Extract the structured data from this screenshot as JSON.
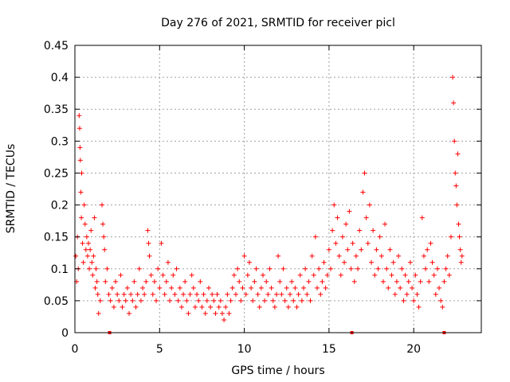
{
  "chart_data": {
    "type": "scatter",
    "title": "Day 276 of 2021, SRMTID for receiver picl",
    "xlabel": "GPS time / hours",
    "ylabel": "SRMTID / TECUs",
    "xlim": [
      0,
      23.99
    ],
    "ylim": [
      0,
      0.45
    ],
    "x_ticks": [
      0,
      5,
      10,
      15,
      20
    ],
    "x_tick_labels": [
      "0",
      "5",
      "10",
      "15",
      "20"
    ],
    "y_ticks": [
      0,
      0.05,
      0.1,
      0.15,
      0.2,
      0.25,
      0.3,
      0.35,
      0.4,
      0.45
    ],
    "y_tick_labels": [
      "0",
      "0.05",
      "0.1",
      "0.15",
      "0.2",
      "0.25",
      "0.3",
      "0.35",
      "0.4",
      "0.45"
    ],
    "grid": true,
    "marker": "plus",
    "color": "#ff0000",
    "series": [
      {
        "points": [
          [
            0.05,
            0.12
          ],
          [
            0.1,
            0.08
          ],
          [
            0.15,
            0.15
          ],
          [
            0.2,
            0.1
          ],
          [
            0.25,
            0.34
          ],
          [
            0.28,
            0.32
          ],
          [
            0.3,
            0.29
          ],
          [
            0.32,
            0.27
          ],
          [
            0.35,
            0.22
          ],
          [
            0.38,
            0.18
          ],
          [
            0.4,
            0.25
          ],
          [
            0.45,
            0.14
          ],
          [
            0.5,
            0.11
          ],
          [
            0.55,
            0.2
          ],
          [
            0.6,
            0.17
          ],
          [
            0.65,
            0.13
          ],
          [
            0.7,
            0.15
          ],
          [
            0.75,
            0.12
          ],
          [
            0.8,
            0.14
          ],
          [
            0.85,
            0.1
          ],
          [
            0.9,
            0.13
          ],
          [
            0.95,
            0.16
          ],
          [
            1.0,
            0.11
          ],
          [
            1.05,
            0.09
          ],
          [
            1.1,
            0.12
          ],
          [
            1.15,
            0.18
          ],
          [
            1.2,
            0.07
          ],
          [
            1.25,
            0.1
          ],
          [
            1.3,
            0.08
          ],
          [
            1.35,
            0.06
          ],
          [
            1.4,
            0.03
          ],
          [
            1.5,
            0.05
          ],
          [
            1.6,
            0.2
          ],
          [
            1.65,
            0.17
          ],
          [
            1.7,
            0.15
          ],
          [
            1.75,
            0.13
          ],
          [
            1.8,
            0.08
          ],
          [
            1.9,
            0.1
          ],
          [
            2.0,
            0.06
          ],
          [
            2.1,
            0.05
          ],
          [
            2.2,
            0.07
          ],
          [
            2.3,
            0.04
          ],
          [
            2.4,
            0.08
          ],
          [
            2.5,
            0.06
          ],
          [
            2.6,
            0.05
          ],
          [
            2.7,
            0.09
          ],
          [
            2.8,
            0.04
          ],
          [
            2.9,
            0.06
          ],
          [
            3.0,
            0.05
          ],
          [
            3.1,
            0.07
          ],
          [
            3.2,
            0.03
          ],
          [
            3.3,
            0.06
          ],
          [
            3.4,
            0.05
          ],
          [
            3.5,
            0.08
          ],
          [
            3.6,
            0.04
          ],
          [
            3.7,
            0.06
          ],
          [
            3.8,
            0.1
          ],
          [
            3.9,
            0.05
          ],
          [
            4.0,
            0.07
          ],
          [
            4.1,
            0.06
          ],
          [
            4.2,
            0.08
          ],
          [
            4.3,
            0.16
          ],
          [
            4.35,
            0.14
          ],
          [
            4.4,
            0.12
          ],
          [
            4.5,
            0.09
          ],
          [
            4.6,
            0.06
          ],
          [
            4.7,
            0.08
          ],
          [
            4.8,
            0.05
          ],
          [
            4.9,
            0.1
          ],
          [
            5.0,
            0.07
          ],
          [
            5.1,
            0.14
          ],
          [
            5.2,
            0.09
          ],
          [
            5.3,
            0.06
          ],
          [
            5.4,
            0.08
          ],
          [
            5.5,
            0.11
          ],
          [
            5.6,
            0.05
          ],
          [
            5.7,
            0.07
          ],
          [
            5.8,
            0.09
          ],
          [
            5.9,
            0.06
          ],
          [
            6.0,
            0.1
          ],
          [
            6.1,
            0.05
          ],
          [
            6.2,
            0.07
          ],
          [
            6.3,
            0.04
          ],
          [
            6.4,
            0.06
          ],
          [
            6.5,
            0.08
          ],
          [
            6.6,
            0.05
          ],
          [
            6.7,
            0.03
          ],
          [
            6.8,
            0.06
          ],
          [
            6.9,
            0.09
          ],
          [
            7.0,
            0.07
          ],
          [
            7.1,
            0.04
          ],
          [
            7.2,
            0.06
          ],
          [
            7.3,
            0.05
          ],
          [
            7.4,
            0.08
          ],
          [
            7.5,
            0.04
          ],
          [
            7.6,
            0.06
          ],
          [
            7.7,
            0.03
          ],
          [
            7.8,
            0.05
          ],
          [
            7.9,
            0.07
          ],
          [
            8.0,
            0.04
          ],
          [
            8.1,
            0.06
          ],
          [
            8.2,
            0.05
          ],
          [
            8.3,
            0.03
          ],
          [
            8.4,
            0.06
          ],
          [
            8.5,
            0.04
          ],
          [
            8.6,
            0.05
          ],
          [
            8.7,
            0.03
          ],
          [
            8.8,
            0.02
          ],
          [
            8.9,
            0.04
          ],
          [
            9.0,
            0.06
          ],
          [
            9.1,
            0.03
          ],
          [
            9.2,
            0.05
          ],
          [
            9.3,
            0.07
          ],
          [
            9.4,
            0.09
          ],
          [
            9.5,
            0.06
          ],
          [
            9.6,
            0.1
          ],
          [
            9.7,
            0.08
          ],
          [
            9.8,
            0.05
          ],
          [
            9.9,
            0.07
          ],
          [
            10.0,
            0.12
          ],
          [
            10.1,
            0.06
          ],
          [
            10.2,
            0.09
          ],
          [
            10.3,
            0.11
          ],
          [
            10.4,
            0.07
          ],
          [
            10.5,
            0.05
          ],
          [
            10.6,
            0.08
          ],
          [
            10.7,
            0.1
          ],
          [
            10.8,
            0.06
          ],
          [
            10.9,
            0.04
          ],
          [
            11.0,
            0.07
          ],
          [
            11.1,
            0.09
          ],
          [
            11.2,
            0.05
          ],
          [
            11.3,
            0.08
          ],
          [
            11.4,
            0.06
          ],
          [
            11.5,
            0.1
          ],
          [
            11.6,
            0.07
          ],
          [
            11.7,
            0.05
          ],
          [
            11.8,
            0.04
          ],
          [
            11.9,
            0.06
          ],
          [
            12.0,
            0.12
          ],
          [
            12.1,
            0.08
          ],
          [
            12.2,
            0.06
          ],
          [
            12.3,
            0.1
          ],
          [
            12.4,
            0.05
          ],
          [
            12.5,
            0.07
          ],
          [
            12.6,
            0.04
          ],
          [
            12.7,
            0.06
          ],
          [
            12.8,
            0.08
          ],
          [
            12.9,
            0.05
          ],
          [
            13.0,
            0.07
          ],
          [
            13.1,
            0.04
          ],
          [
            13.2,
            0.06
          ],
          [
            13.3,
            0.09
          ],
          [
            13.4,
            0.05
          ],
          [
            13.5,
            0.07
          ],
          [
            13.6,
            0.1
          ],
          [
            13.7,
            0.06
          ],
          [
            13.8,
            0.08
          ],
          [
            13.9,
            0.05
          ],
          [
            14.0,
            0.12
          ],
          [
            14.1,
            0.09
          ],
          [
            14.2,
            0.15
          ],
          [
            14.3,
            0.07
          ],
          [
            14.4,
            0.1
          ],
          [
            14.5,
            0.06
          ],
          [
            14.6,
            0.08
          ],
          [
            14.7,
            0.11
          ],
          [
            14.8,
            0.07
          ],
          [
            14.9,
            0.09
          ],
          [
            15.0,
            0.13
          ],
          [
            15.1,
            0.1
          ],
          [
            15.2,
            0.16
          ],
          [
            15.3,
            0.2
          ],
          [
            15.4,
            0.14
          ],
          [
            15.5,
            0.18
          ],
          [
            15.6,
            0.12
          ],
          [
            15.7,
            0.09
          ],
          [
            15.8,
            0.15
          ],
          [
            15.9,
            0.11
          ],
          [
            16.0,
            0.17
          ],
          [
            16.1,
            0.13
          ],
          [
            16.2,
            0.19
          ],
          [
            16.3,
            0.1
          ],
          [
            16.4,
            0.14
          ],
          [
            16.5,
            0.08
          ],
          [
            16.6,
            0.12
          ],
          [
            16.7,
            0.1
          ],
          [
            16.8,
            0.16
          ],
          [
            16.9,
            0.13
          ],
          [
            17.0,
            0.22
          ],
          [
            17.1,
            0.25
          ],
          [
            17.2,
            0.18
          ],
          [
            17.3,
            0.14
          ],
          [
            17.4,
            0.2
          ],
          [
            17.5,
            0.11
          ],
          [
            17.6,
            0.16
          ],
          [
            17.7,
            0.09
          ],
          [
            17.8,
            0.13
          ],
          [
            17.9,
            0.1
          ],
          [
            18.0,
            0.15
          ],
          [
            18.1,
            0.12
          ],
          [
            18.2,
            0.08
          ],
          [
            18.3,
            0.17
          ],
          [
            18.4,
            0.1
          ],
          [
            18.5,
            0.07
          ],
          [
            18.6,
            0.13
          ],
          [
            18.7,
            0.09
          ],
          [
            18.8,
            0.11
          ],
          [
            18.9,
            0.06
          ],
          [
            19.0,
            0.08
          ],
          [
            19.1,
            0.12
          ],
          [
            19.2,
            0.07
          ],
          [
            19.3,
            0.1
          ],
          [
            19.4,
            0.05
          ],
          [
            19.5,
            0.09
          ],
          [
            19.6,
            0.06
          ],
          [
            19.7,
            0.08
          ],
          [
            19.8,
            0.11
          ],
          [
            19.9,
            0.07
          ],
          [
            20.0,
            0.05
          ],
          [
            20.1,
            0.09
          ],
          [
            20.2,
            0.06
          ],
          [
            20.3,
            0.04
          ],
          [
            20.4,
            0.08
          ],
          [
            20.5,
            0.18
          ],
          [
            20.6,
            0.12
          ],
          [
            20.7,
            0.1
          ],
          [
            20.8,
            0.13
          ],
          [
            20.9,
            0.08
          ],
          [
            21.0,
            0.14
          ],
          [
            21.1,
            0.11
          ],
          [
            21.2,
            0.09
          ],
          [
            21.3,
            0.06
          ],
          [
            21.4,
            0.1
          ],
          [
            21.5,
            0.07
          ],
          [
            21.6,
            0.05
          ],
          [
            21.7,
            0.04
          ],
          [
            21.8,
            0.08
          ],
          [
            21.9,
            0.1
          ],
          [
            22.0,
            0.12
          ],
          [
            22.1,
            0.09
          ],
          [
            22.2,
            0.15
          ],
          [
            22.3,
            0.4
          ],
          [
            22.35,
            0.36
          ],
          [
            22.4,
            0.3
          ],
          [
            22.45,
            0.25
          ],
          [
            22.5,
            0.23
          ],
          [
            22.55,
            0.2
          ],
          [
            22.6,
            0.28
          ],
          [
            22.65,
            0.17
          ],
          [
            22.7,
            0.15
          ],
          [
            22.75,
            0.13
          ],
          [
            22.8,
            0.11
          ],
          [
            22.85,
            0.12
          ]
        ]
      }
    ],
    "baseline_marks_x": [
      2.05,
      16.35,
      21.8
    ]
  }
}
